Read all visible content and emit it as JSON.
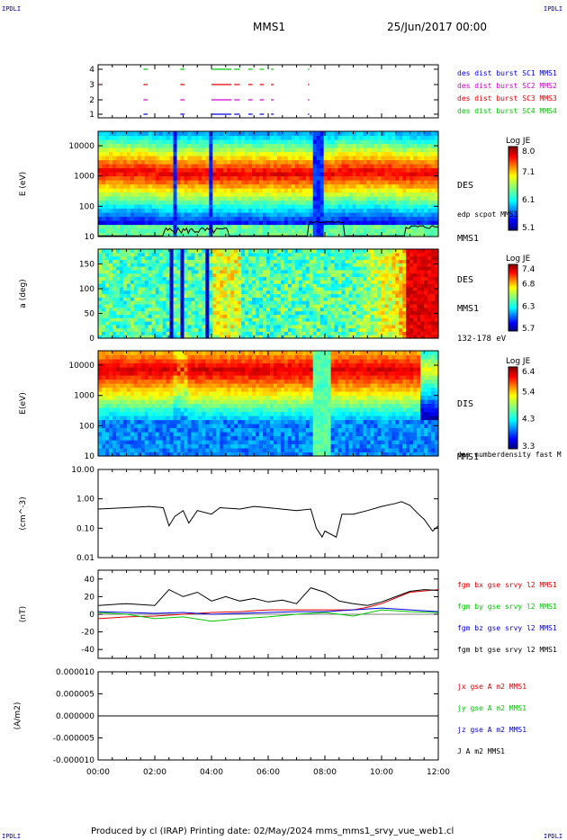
{
  "header": {
    "left_corner": "IPDLI",
    "right_corner": "IPDLI",
    "title": "MMS1",
    "date": "25/Jun/2017 00:00"
  },
  "footer": {
    "text": "Produced by cl (IRAP)   Printing date: 02/May/2024   mms_mms1_srvy_vue_web1.cl",
    "left_corner": "IPDLI",
    "right_corner": "IPDLI"
  },
  "colors": {
    "red": "#e00000",
    "green": "#00c800",
    "blue": "#0000e0",
    "magenta": "#d000d0",
    "black": "#000000"
  },
  "chart_data": [
    {
      "panel": "burst",
      "type": "scatter",
      "y_ticks": [
        "1",
        "2",
        "3",
        "4"
      ],
      "series": [
        {
          "name": "des dist burst SC1 MMS1",
          "color": "#0000e0",
          "level": 1
        },
        {
          "name": "des dist burst SC2 MMS2",
          "color": "#d000d0",
          "level": 2
        },
        {
          "name": "des dist burst SC3 MMS3",
          "color": "#e00000",
          "level": 3
        },
        {
          "name": "des dist burst SC4 MMS4",
          "color": "#00c800",
          "level": 4
        }
      ],
      "burst_intervals_hours": [
        [
          1.6,
          1.75
        ],
        [
          2.9,
          3.05
        ],
        [
          4.0,
          4.7
        ],
        [
          4.8,
          5.0
        ],
        [
          5.3,
          5.45
        ],
        [
          5.7,
          5.85
        ],
        [
          6.1,
          6.2
        ],
        [
          7.4,
          7.45
        ]
      ]
    },
    {
      "panel": "des_energy",
      "type": "heatmap",
      "ylabel": "E (eV)",
      "yscale": "log",
      "ylim": [
        10,
        30000
      ],
      "y_ticks": [
        "10",
        "100",
        "1000",
        "10000"
      ],
      "right_labels": [
        "DES",
        "MMS1",
        "edp scpot MMS1"
      ],
      "colorbar": {
        "title": "Log JE",
        "ticks": [
          "8.0",
          "7.1",
          "6.1",
          "5.1"
        ]
      }
    },
    {
      "panel": "des_pitch",
      "type": "heatmap",
      "ylabel": "a (deg)",
      "ylim": [
        0,
        180
      ],
      "y_ticks": [
        "0",
        "50",
        "100",
        "150"
      ],
      "right_labels": [
        "DES",
        "MMS1",
        "132-178 eV"
      ],
      "colorbar": {
        "title": "Log JE",
        "ticks": [
          "7.4",
          "6.8",
          "6.3",
          "5.7"
        ]
      }
    },
    {
      "panel": "dis_energy",
      "type": "heatmap",
      "ylabel": "E(eV)",
      "yscale": "log",
      "ylim": [
        10,
        30000
      ],
      "y_ticks": [
        "10",
        "100",
        "1000",
        "10000"
      ],
      "right_labels": [
        "DIS",
        "MMS1"
      ],
      "colorbar": {
        "title": "Log JE",
        "ticks": [
          "6.4",
          "5.4",
          "4.3",
          "3.3"
        ]
      }
    },
    {
      "panel": "density",
      "type": "line",
      "ylabel": "(cm^-3)",
      "yscale": "log",
      "ylim": [
        0.01,
        10
      ],
      "y_ticks": [
        "10.00",
        "1.00",
        "0.10",
        "0.01"
      ],
      "series": [
        {
          "name": "des numberdensity fast M",
          "color": "#000000",
          "x": [
            0,
            1,
            1.8,
            2.3,
            2.5,
            2.7,
            3.0,
            3.2,
            3.5,
            4.0,
            4.3,
            5.0,
            5.5,
            6.0,
            7.0,
            7.5,
            7.7,
            7.9,
            8.0,
            8.4,
            8.6,
            9.0,
            9.5,
            10.0,
            10.5,
            10.7,
            11.0,
            11.3,
            11.5,
            11.8,
            12.0
          ],
          "y": [
            0.45,
            0.5,
            0.55,
            0.5,
            0.12,
            0.25,
            0.4,
            0.15,
            0.4,
            0.3,
            0.5,
            0.45,
            0.55,
            0.5,
            0.4,
            0.45,
            0.1,
            0.05,
            0.08,
            0.05,
            0.3,
            0.3,
            0.4,
            0.55,
            0.7,
            0.8,
            0.6,
            0.3,
            0.2,
            0.08,
            0.12
          ]
        }
      ]
    },
    {
      "panel": "magnetic_field",
      "type": "line",
      "ylabel": "(nT)",
      "ylim": [
        -50,
        50
      ],
      "y_ticks": [
        "40",
        "20",
        "0",
        "-20",
        "-40"
      ],
      "series": [
        {
          "name": "fgm bx gse srvy l2 MMS1",
          "color": "#e00000",
          "x": [
            0,
            1,
            2,
            3,
            4,
            5,
            6,
            7,
            8,
            9,
            9.5,
            10,
            11,
            12
          ],
          "y": [
            -5,
            -3,
            -2,
            0,
            2,
            3,
            5,
            5,
            5,
            5,
            8,
            12,
            25,
            28
          ]
        },
        {
          "name": "fgm by gse srvy l2 MMS1",
          "color": "#00c800",
          "x": [
            0,
            1,
            2,
            3,
            4,
            5,
            6,
            7,
            8,
            9,
            10,
            11,
            12
          ],
          "y": [
            2,
            0,
            -5,
            -3,
            -8,
            -5,
            -3,
            0,
            2,
            -2,
            5,
            3,
            2
          ]
        },
        {
          "name": "fgm bz gse srvy l2 MMS1",
          "color": "#0000e0",
          "x": [
            0,
            1,
            2,
            3,
            4,
            5,
            6,
            7,
            8,
            9,
            10,
            11,
            12
          ],
          "y": [
            3,
            2,
            1,
            2,
            0,
            1,
            2,
            3,
            3,
            5,
            7,
            5,
            3
          ]
        },
        {
          "name": "fgm bt gse srvy l2 MMS1",
          "color": "#000000",
          "x": [
            0,
            1,
            2,
            2.5,
            3,
            3.5,
            4,
            4.5,
            5,
            5.5,
            6,
            6.5,
            7,
            7.5,
            8,
            8.5,
            9,
            9.5,
            10,
            10.5,
            11,
            11.5,
            12
          ],
          "y": [
            10,
            12,
            10,
            28,
            20,
            25,
            15,
            20,
            15,
            18,
            14,
            16,
            12,
            30,
            25,
            15,
            12,
            10,
            14,
            20,
            26,
            28,
            27
          ]
        }
      ]
    },
    {
      "panel": "current_density",
      "type": "line",
      "ylabel": "(A/m2)",
      "ylim": [
        -1e-05,
        1e-05
      ],
      "y_ticks": [
        "0.000010",
        "0.000005",
        "0.000000",
        "-0.000005",
        "-0.000010"
      ],
      "x_ticks": [
        "00:00",
        "02:00",
        "04:00",
        "06:00",
        "08:00",
        "10:00",
        "12:00"
      ],
      "series": [
        {
          "name": "jx gse A m2 MMS1",
          "color": "#e00000"
        },
        {
          "name": "jy gse A m2 MMS1",
          "color": "#00c800"
        },
        {
          "name": "jz gse A m2 MMS1",
          "color": "#0000e0"
        },
        {
          "name": "J A m2 MMS1",
          "color": "#000000"
        }
      ]
    }
  ]
}
